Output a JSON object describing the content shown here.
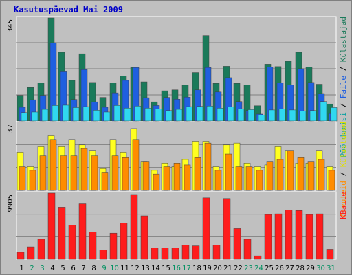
{
  "chart_data": {
    "title": "Kasutuspäevad Mai 2009",
    "days": [
      "1",
      "2",
      "3",
      "4",
      "5",
      "6",
      "7",
      "8",
      "9",
      "10",
      "11",
      "12",
      "13",
      "14",
      "15",
      "16",
      "17",
      "18",
      "19",
      "20",
      "21",
      "22",
      "23",
      "24",
      "25",
      "26",
      "27",
      "28",
      "29",
      "30",
      "31"
    ],
    "weekend_days": [
      2,
      3,
      9,
      10,
      16,
      17,
      23,
      24,
      30,
      31
    ],
    "colors": {
      "day_label": "#000000",
      "weekend_label": "#009060",
      "background": "#c0c0c0",
      "grid": "#808080"
    },
    "panels": [
      {
        "type": "bar",
        "max_label": "345",
        "ymax": 345,
        "series": [
          {
            "name": "Külastajad",
            "color": "#1a7a5a",
            "values": [
              86,
              112,
              127,
              345,
              230,
              136,
              225,
              129,
              79,
              128,
              151,
              179,
              131,
              64,
              101,
              104,
              120,
              162,
              286,
              126,
              183,
              126,
              121,
              51,
              190,
              182,
              200,
              230,
              180,
              123,
              57
            ]
          },
          {
            "name": "Faile",
            "color": "#1f5fe0",
            "values": [
              46,
              71,
              86,
              262,
              167,
              72,
              172,
              64,
              46,
              94,
              136,
              179,
              78,
              52,
              79,
              73,
              80,
              104,
              179,
              97,
              145,
              65,
              35,
              23,
              181,
              127,
              121,
              175,
              129,
              92,
              25
            ]
          },
          {
            "name": "Pöördumisi",
            "color": "#30d8f0",
            "values": [
              28,
              30,
              39,
              52,
              53,
              45,
              48,
              36,
              30,
              52,
              43,
              50,
              43,
              40,
              35,
              39,
              48,
              49,
              50,
              43,
              47,
              40,
              38,
              20,
              37,
              40,
              37,
              33,
              35,
              65,
              45
            ]
          }
        ]
      },
      {
        "type": "bar",
        "max_label": "37",
        "ymax": 37,
        "series": [
          {
            "name": "Külastused",
            "color": "#ffff20",
            "values": [
              21,
              13,
              24,
              30,
              24,
              28,
              25,
              22,
              12,
              28,
              21,
              34,
              16,
              11,
              15,
              13,
              17,
              27,
              27,
              13,
              25,
              26,
              15,
              13,
              14,
              24,
              22,
              15,
              15,
              22,
              13
            ]
          },
          {
            "name": "Arvuteid",
            "color": "#ff8c00",
            "values": [
              13,
              11,
              19,
              28,
              19,
              19,
              23,
              19,
              10,
              19,
              18,
              28,
              16,
              9,
              13,
              15,
              14,
              18,
              26,
              11,
              20,
              13,
              13,
              11,
              16,
              17,
              22,
              18,
              16,
              17,
              11
            ]
          }
        ]
      },
      {
        "type": "bar",
        "max_label": "9905",
        "ymax": 9905,
        "series": [
          {
            "name": "KBaite",
            "color": "#ff1c1c",
            "values": [
              1040,
              1850,
              3000,
              9905,
              7800,
              5100,
              8300,
              4100,
              1400,
              3900,
              5400,
              9700,
              6500,
              1700,
              1700,
              1700,
              2100,
              2000,
              9200,
              2100,
              9100,
              4600,
              3000,
              500,
              6700,
              6800,
              7400,
              7300,
              6700,
              6800,
              1500
            ]
          }
        ]
      }
    ],
    "right_labels": [
      {
        "parts": [
          {
            "text": "Pöördumisi",
            "color": "#0aa0a0"
          },
          {
            "text": " / ",
            "color": "#000000"
          },
          {
            "text": "Faile",
            "color": "#1f5fe0"
          },
          {
            "text": " / ",
            "color": "#000000"
          },
          {
            "text": "Külastajad",
            "color": "#1a7a5a"
          }
        ]
      },
      {
        "parts": [
          {
            "text": "Arvuteid",
            "color": "#ff8c00"
          },
          {
            "text": " / ",
            "color": "#000000"
          },
          {
            "text": "Külastused",
            "color": "#e0e000"
          }
        ]
      },
      {
        "parts": [
          {
            "text": "KBaite",
            "color": "#ff1c1c"
          }
        ]
      }
    ]
  }
}
